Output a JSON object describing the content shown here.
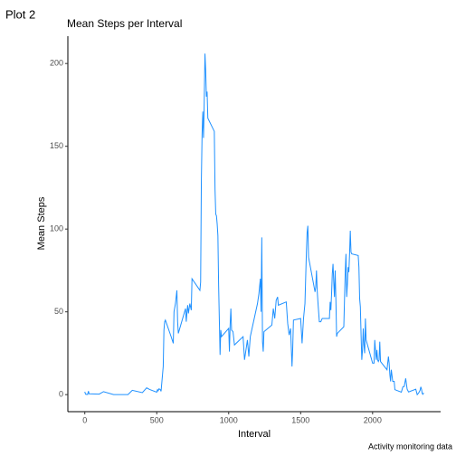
{
  "chart_data": {
    "type": "line",
    "tag": "Plot 2",
    "title": "Mean Steps per Interval",
    "x_label": "Interval",
    "y_label": "Mean Steps",
    "caption": "Activity monitoring data",
    "color": "#1e90ff",
    "x": [
      0,
      5,
      10,
      15,
      20,
      25,
      30,
      100,
      130,
      200,
      300,
      330,
      400,
      430,
      450,
      500,
      505,
      510,
      515,
      520,
      525,
      530,
      545,
      550,
      555,
      560,
      600,
      615,
      620,
      630,
      640,
      645,
      650,
      700,
      705,
      710,
      715,
      720,
      730,
      740,
      745,
      800,
      805,
      810,
      815,
      820,
      825,
      830,
      835,
      840,
      845,
      850,
      855,
      900,
      905,
      910,
      915,
      920,
      925,
      930,
      935,
      940,
      945,
      950,
      1000,
      1005,
      1010,
      1015,
      1020,
      1030,
      1040,
      1100,
      1110,
      1130,
      1140,
      1150,
      1200,
      1210,
      1220,
      1225,
      1230,
      1235,
      1240,
      1245,
      1300,
      1310,
      1320,
      1330,
      1340,
      1345,
      1400,
      1410,
      1420,
      1430,
      1440,
      1445,
      1450,
      1500,
      1510,
      1520,
      1530,
      1540,
      1545,
      1550,
      1555,
      1600,
      1605,
      1610,
      1615,
      1620,
      1625,
      1630,
      1640,
      1645,
      1650,
      1700,
      1705,
      1710,
      1715,
      1720,
      1725,
      1730,
      1735,
      1740,
      1745,
      1750,
      1755,
      1800,
      1805,
      1810,
      1815,
      1820,
      1825,
      1830,
      1835,
      1840,
      1845,
      1850,
      1855,
      1900,
      1905,
      1910,
      1915,
      1920,
      1925,
      1930,
      1935,
      1940,
      1945,
      1950,
      1955,
      2000,
      2005,
      2010,
      2015,
      2020,
      2025,
      2030,
      2035,
      2040,
      2045,
      2050,
      2055,
      2100,
      2110,
      2115,
      2120,
      2125,
      2130,
      2140,
      2145,
      2150,
      2155,
      2200,
      2210,
      2220,
      2230,
      2240,
      2250,
      2300,
      2310,
      2320,
      2330,
      2335,
      2340,
      2345,
      2350,
      2355
    ],
    "values": [
      1.7,
      0.3,
      0.1,
      0.2,
      0.1,
      2.1,
      0.5,
      0.3,
      1.8,
      0,
      0,
      2.6,
      1.2,
      4.1,
      3.1,
      1.5,
      3,
      2.3,
      3.5,
      3.3,
      3,
      2,
      17,
      39,
      44,
      45,
      35,
      31,
      50,
      55,
      63,
      44,
      37,
      52,
      44,
      50,
      54,
      49,
      55,
      51,
      70,
      63,
      68,
      129,
      157,
      171,
      155,
      177,
      206,
      196,
      180,
      183,
      167,
      159,
      124,
      109,
      108,
      103,
      96,
      66,
      45,
      24,
      39,
      35,
      40,
      26,
      42,
      52,
      39,
      38,
      30,
      35,
      21,
      33,
      23,
      35,
      55,
      61,
      70,
      50,
      95,
      32,
      26,
      38,
      42,
      52,
      46,
      57,
      59,
      54,
      56,
      43,
      36,
      40,
      17,
      28,
      45,
      46,
      31,
      46,
      55,
      86,
      98,
      102,
      83,
      62,
      65,
      75,
      63,
      56,
      50,
      44,
      44,
      45,
      46,
      46,
      56,
      51,
      61,
      73,
      79,
      68,
      59,
      75,
      57,
      35,
      37,
      41,
      58,
      74,
      85,
      59,
      67,
      77,
      74,
      85,
      99,
      86,
      85,
      84,
      77,
      58,
      53,
      36,
      21,
      27,
      40,
      30,
      25,
      46,
      33,
      19,
      19,
      19,
      33,
      27,
      21,
      27,
      21,
      20,
      21,
      32,
      20,
      15,
      23,
      19,
      12,
      8,
      15,
      8,
      8,
      8,
      3,
      1.5,
      4.6,
      5,
      9.8,
      3.3,
      1.6,
      3.3,
      0,
      1,
      2.6,
      4.7,
      3.3,
      0.6,
      0.2,
      1.1
    ],
    "xlim": [
      -117.75,
      2472.75
    ],
    "ylim": [
      -10.3,
      216.5
    ],
    "xticks": [
      0,
      500,
      1000,
      1500,
      2000
    ],
    "yticks": [
      0,
      50,
      100,
      150,
      200
    ]
  }
}
